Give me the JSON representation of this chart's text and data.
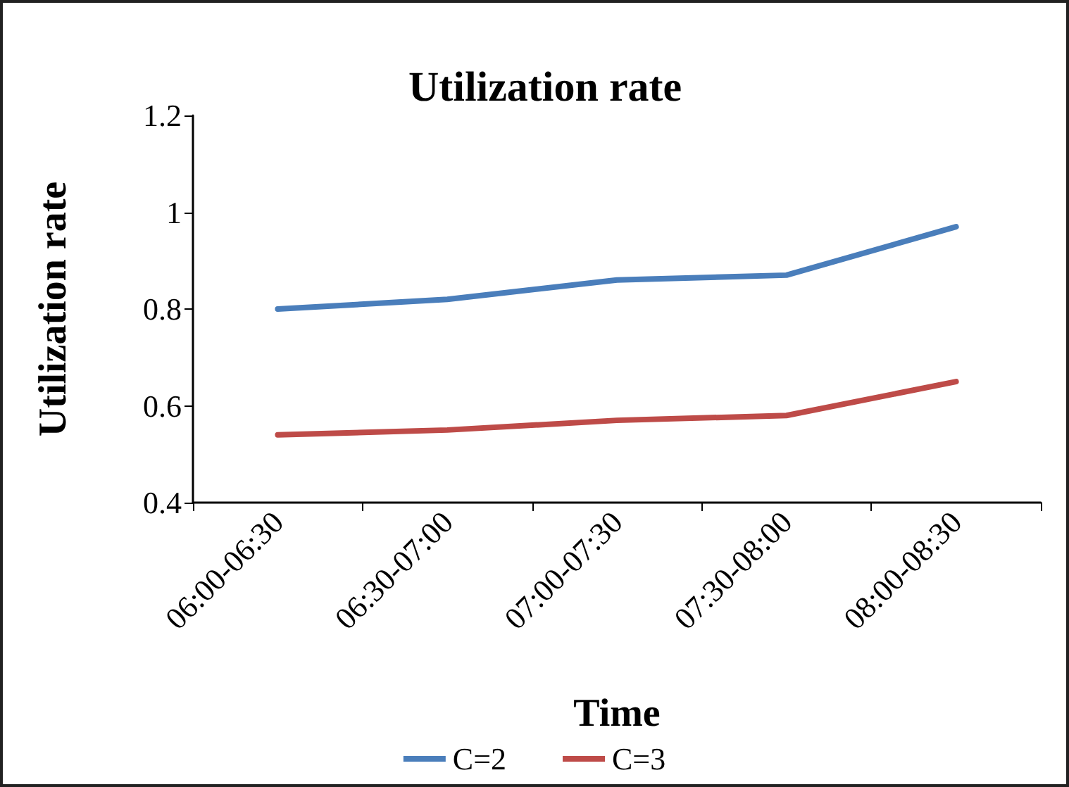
{
  "chart_data": {
    "type": "line",
    "title": "Utilization rate",
    "xlabel": "Time",
    "ylabel": "Utilization rate",
    "categories": [
      "06:00-06:30",
      "06:30-07:00",
      "07:00-07:30",
      "07:30-08:00",
      "08:00-08:30"
    ],
    "series": [
      {
        "name": "C=2",
        "color": "#4a7ebb",
        "values": [
          0.8,
          0.82,
          0.86,
          0.87,
          0.97
        ]
      },
      {
        "name": "C=3",
        "color": "#be4b48",
        "values": [
          0.54,
          0.55,
          0.57,
          0.58,
          0.65
        ]
      }
    ],
    "ylim": [
      0.4,
      1.2
    ],
    "yticks": [
      0.4,
      0.6,
      0.8,
      {
        "value": 1,
        "label": "1"
      },
      1.2
    ],
    "grid": false,
    "legend": "bottom",
    "marker": "none",
    "line_style": "solid"
  }
}
